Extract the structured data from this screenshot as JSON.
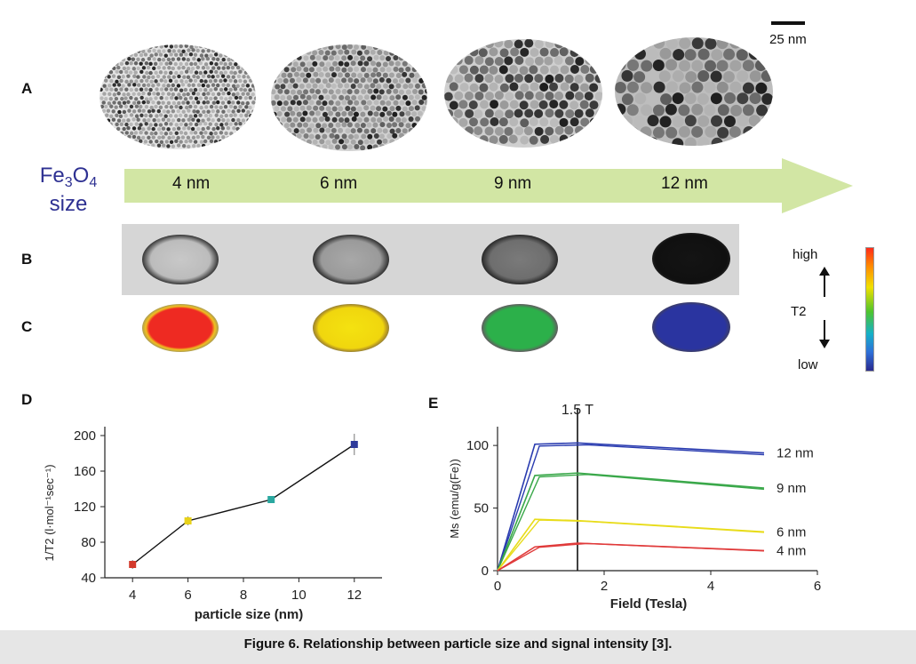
{
  "scale_bar": {
    "label": "25 nm"
  },
  "panel_letters": {
    "a": "A",
    "b": "B",
    "c": "C",
    "d": "D",
    "e": "E"
  },
  "size_label": {
    "line1_main": "Fe",
    "line1_sub1": "3",
    "line1_mid": "O",
    "line1_sub2": "4",
    "line2": "size"
  },
  "sizes": [
    "4 nm",
    "6 nm",
    "9 nm",
    "12 nm"
  ],
  "colors": {
    "arrow": "#d2e6a4",
    "label_blue": "#2e3192",
    "c_4nm": "#ee2a22",
    "c_6nm": "#f4e210",
    "c_9nm": "#2cb04a",
    "c_12nm": "#2a34a0"
  },
  "colorbar": {
    "high": "high",
    "low": "low",
    "middle": "T2"
  },
  "chart_data": [
    {
      "type": "scatter",
      "panel": "D",
      "xlabel": "particle size (nm)",
      "ylabel": "1/T2 (l·mol⁻¹sec⁻¹)",
      "xlim": [
        3,
        13
      ],
      "ylim": [
        40,
        210
      ],
      "xticks": [
        "4",
        "6",
        "8",
        "10",
        "12"
      ],
      "yticks": [
        "40",
        "80",
        "120",
        "160",
        "200"
      ],
      "points": [
        {
          "x": 4,
          "y": 55,
          "err": 5,
          "color": "#d33a2c"
        },
        {
          "x": 6,
          "y": 104,
          "err": 5,
          "color": "#e8d21a"
        },
        {
          "x": 9,
          "y": 128,
          "err": 3,
          "color": "#2aa8a0"
        },
        {
          "x": 12,
          "y": 190,
          "err": 12,
          "color": "#2e3a9a"
        }
      ]
    },
    {
      "type": "line",
      "panel": "E",
      "xlabel": "Field (Tesla)",
      "ylabel": "Ms (emu/g(Fe))",
      "xlim": [
        0,
        6
      ],
      "ylim": [
        0,
        115
      ],
      "xticks": [
        "0",
        "2",
        "4",
        "6"
      ],
      "yticks": [
        "0",
        "50",
        "100"
      ],
      "vline": {
        "x": 1.5,
        "label": "1.5 T"
      },
      "series": [
        {
          "name": "12 nm",
          "color": "#2a3cb0",
          "x": [
            0,
            0.7,
            1.5,
            5
          ],
          "y": [
            0,
            101,
            102,
            94
          ]
        },
        {
          "name": "9 nm",
          "color": "#3aa84a",
          "x": [
            0,
            0.7,
            1.5,
            5
          ],
          "y": [
            0,
            76,
            78,
            66
          ]
        },
        {
          "name": "6 nm",
          "color": "#e8dc1a",
          "x": [
            0,
            0.7,
            1.5,
            5
          ],
          "y": [
            0,
            41,
            40,
            31
          ]
        },
        {
          "name": "4 nm",
          "color": "#e03a3a",
          "x": [
            0,
            0.7,
            1.5,
            5
          ],
          "y": [
            0,
            19,
            22,
            16
          ]
        }
      ]
    }
  ],
  "caption": "Figure 6. Relationship between particle size and signal intensity [3]."
}
